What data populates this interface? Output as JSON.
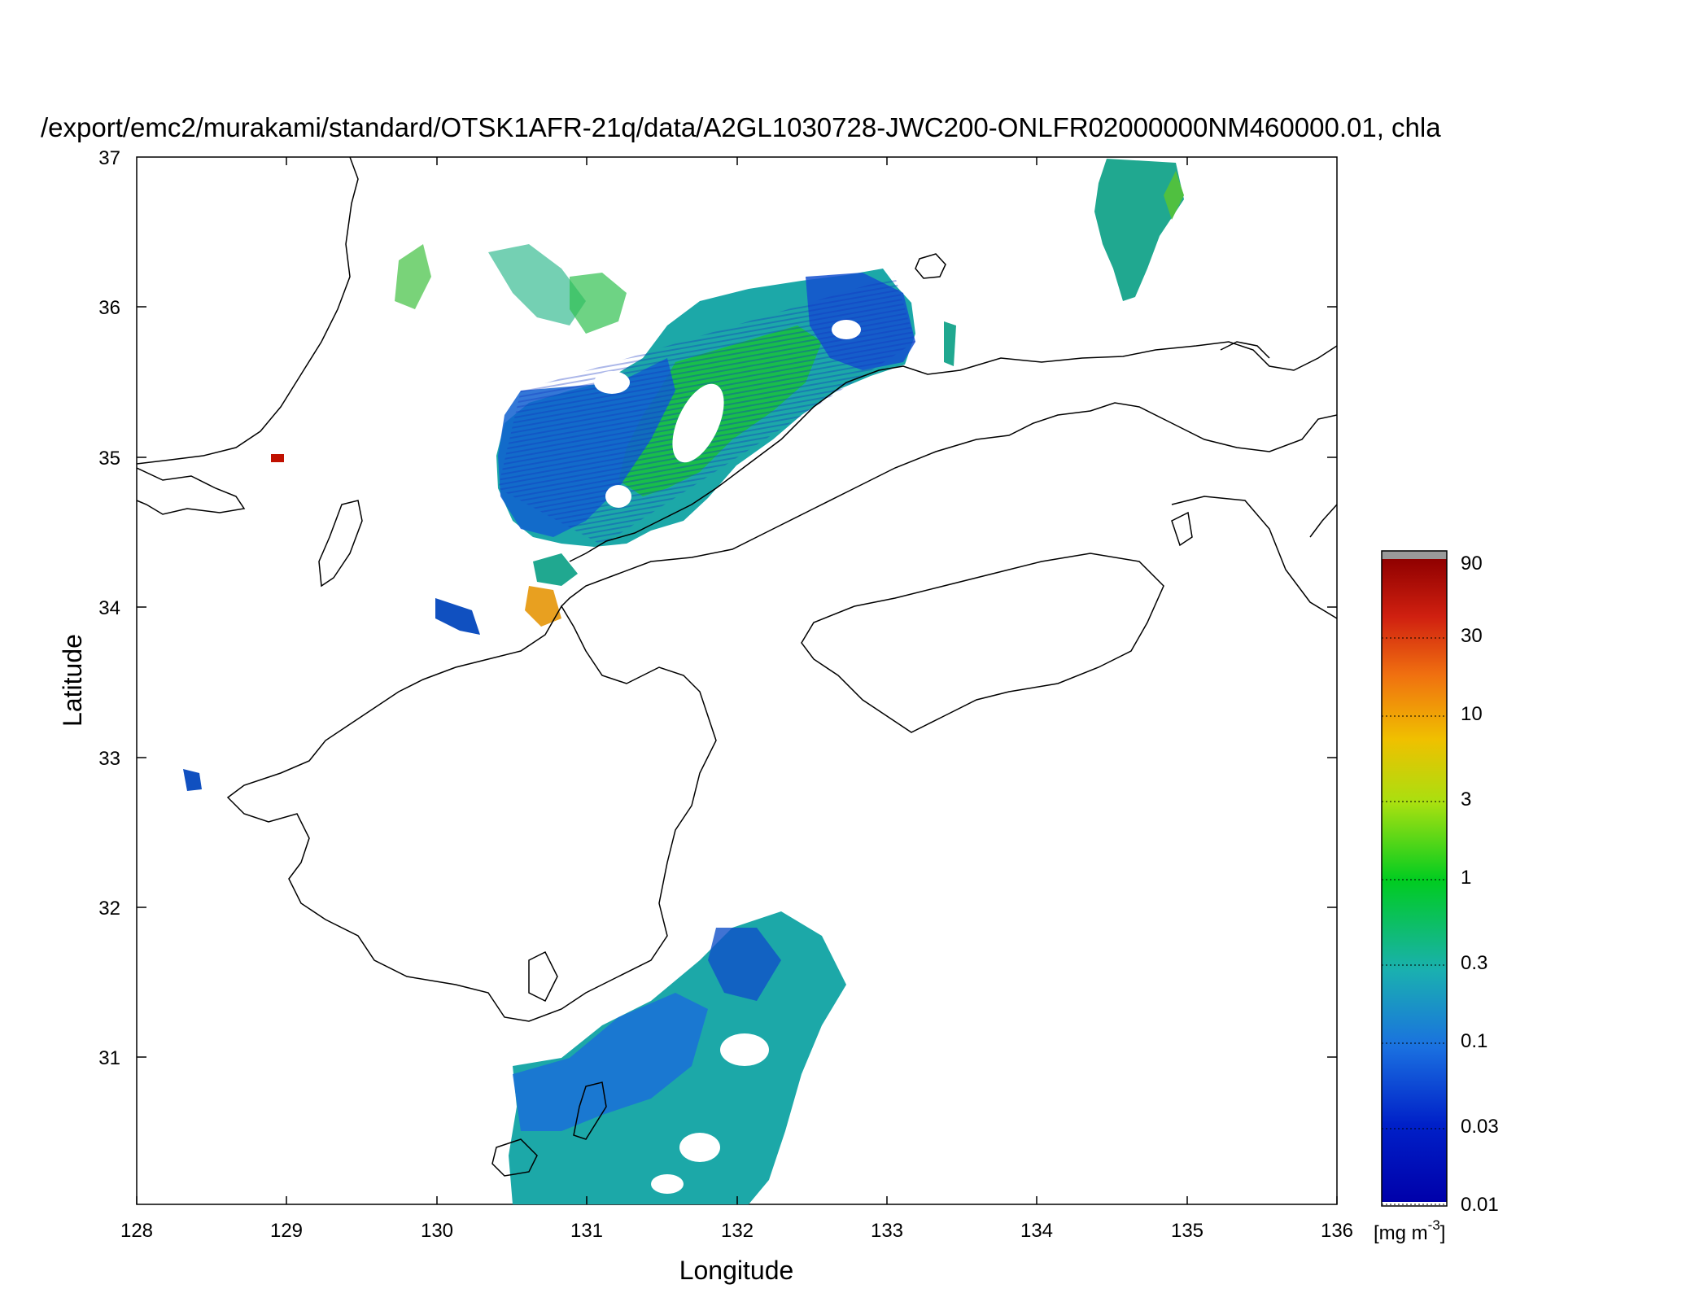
{
  "title": "/export/emc2/murakami/standard/OTSK1AFR-21q/data/A2GL1030728-JWC200-ONLFR02000000NM460000.01, chla",
  "axes": {
    "xlabel": "Longitude",
    "ylabel": "Latitude",
    "x_ticks": [
      "128",
      "129",
      "130",
      "131",
      "132",
      "133",
      "134",
      "135",
      "136"
    ],
    "y_ticks": [
      "31",
      "32",
      "33",
      "34",
      "35",
      "36",
      "37"
    ],
    "x_range": [
      128,
      136
    ],
    "y_range": [
      30.03,
      37
    ]
  },
  "colorbar": {
    "labels": [
      "0.01",
      "0.03",
      "0.1",
      "0.3",
      "1",
      "3",
      "10",
      "30",
      "90"
    ],
    "values": [
      0.01,
      0.03,
      0.1,
      0.3,
      1,
      3,
      10,
      30,
      90
    ],
    "scale": "log",
    "units_prefix": "[mg m",
    "units_exp": "-3",
    "units_suffix": "]",
    "colors": [
      "#0000aa",
      "#0040e0",
      "#1c7fe0",
      "#1ab0a0",
      "#00cc30",
      "#a8e010",
      "#f0c800",
      "#f07010",
      "#d02010",
      "#900000"
    ],
    "overflow_color": "#999999"
  },
  "colors": {
    "coast": "#000000",
    "low": "#1040d0",
    "mid": "#20a890",
    "high": "#10d020",
    "bloom": "#e8a020",
    "peak": "#c01000"
  }
}
